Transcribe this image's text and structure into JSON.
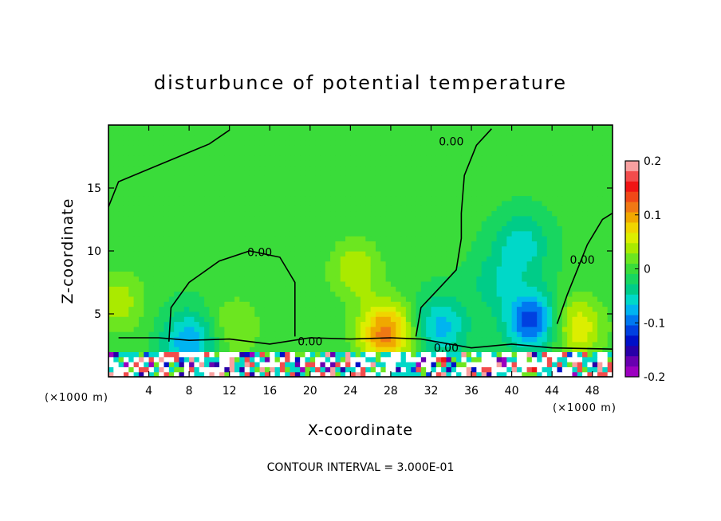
{
  "chart_data": {
    "type": "heatmap",
    "title": "disturbunce of potential temperature",
    "xlabel": "X-coordinate",
    "ylabel": "Z-coordinate",
    "x_unit": "(×1000 m)",
    "y_unit": "",
    "xlim": [
      0,
      50
    ],
    "ylim": [
      0,
      20
    ],
    "x_ticks": [
      4,
      8,
      12,
      16,
      20,
      24,
      28,
      32,
      36,
      40,
      44,
      48
    ],
    "y_ticks": [
      5,
      10,
      15
    ],
    "colorbar": {
      "min": -0.2,
      "max": 0.2,
      "tick_values": [
        0.2,
        0.1,
        0,
        -0.1,
        -0.2
      ],
      "tick_labels": [
        "0.2",
        "0.1",
        "0",
        "-0.1",
        "-0.2"
      ],
      "colors": [
        "#f8a0a0",
        "#f24c4c",
        "#f01414",
        "#f04818",
        "#f07814",
        "#f0a800",
        "#f0d400",
        "#dcee00",
        "#aaea00",
        "#6ce620",
        "#3adc3a",
        "#18d660",
        "#00cc88",
        "#00d8c8",
        "#00b4f0",
        "#0078f0",
        "#0040e0",
        "#0010c8",
        "#2800a8",
        "#6800b0",
        "#9c00c0"
      ]
    },
    "contour_labels": [
      "0.00",
      "0.00",
      "0.00",
      "0.00",
      "0.00"
    ],
    "contour_label_positions": [
      [
        15,
        9.6
      ],
      [
        34,
        18.4
      ],
      [
        47,
        9.0
      ],
      [
        20,
        2.5
      ],
      [
        33.5,
        2.0
      ]
    ],
    "contour_interval_text": "CONTOUR INTERVAL = 3.000E-01",
    "background_value": -0.005,
    "field_features": [
      {
        "kind": "anomaly",
        "x": 24.5,
        "z": 8.5,
        "value": 0.05
      },
      {
        "kind": "anomaly",
        "x": 12.5,
        "z": 4.0,
        "value": 0.035
      },
      {
        "kind": "anomaly",
        "x": 41.0,
        "z": 10.5,
        "value": -0.055
      },
      {
        "kind": "anomaly",
        "x": 38.5,
        "z": 7.5,
        "value": -0.035
      },
      {
        "kind": "anomaly",
        "x": 42.0,
        "z": 4.5,
        "value": -0.11
      },
      {
        "kind": "anomaly",
        "x": 46.5,
        "z": 4.0,
        "value": 0.07
      },
      {
        "kind": "anomaly",
        "x": 1.0,
        "z": 6.0,
        "value": 0.045
      },
      {
        "kind": "anomaly",
        "x": 33.0,
        "z": 4.0,
        "value": -0.07
      },
      {
        "kind": "anomaly",
        "x": 8.0,
        "z": 2.8,
        "value": -0.08
      },
      {
        "kind": "anomaly",
        "x": 27.5,
        "z": 3.5,
        "value": 0.12
      }
    ],
    "boundary_layer_top": 2.0
  }
}
